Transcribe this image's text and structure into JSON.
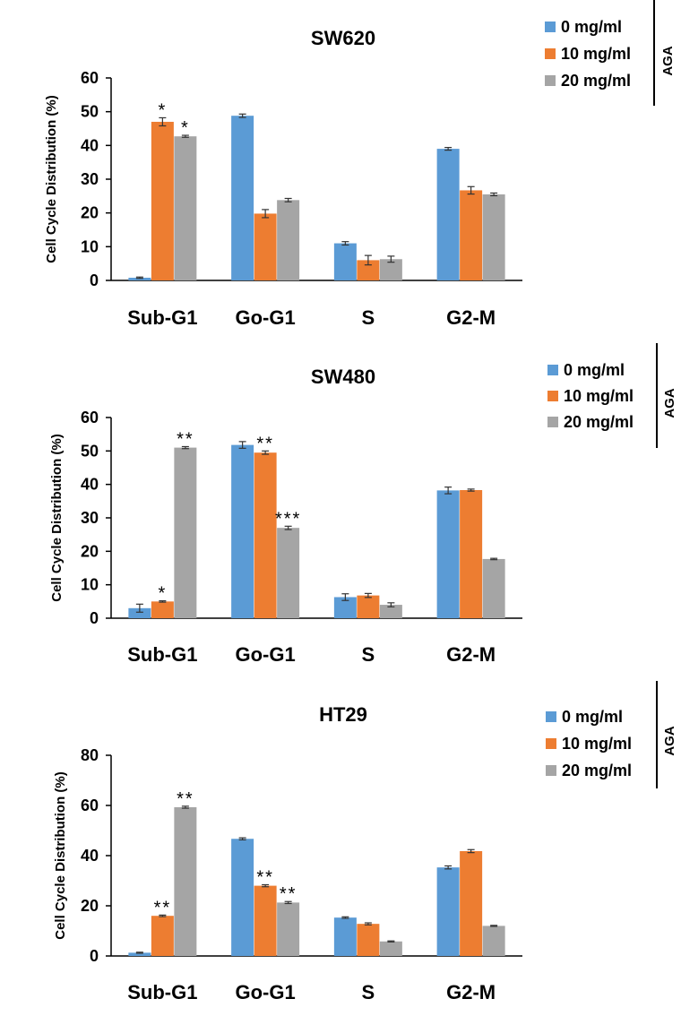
{
  "chart_data": [
    {
      "type": "bar",
      "title": "SW620",
      "ylabel": "Cell Cycle Distribution (%)",
      "xlabel": "",
      "ylim": [
        0,
        60
      ],
      "yticks": [
        0,
        10,
        20,
        30,
        40,
        50,
        60
      ],
      "categories": [
        "Sub-G1",
        "Go-G1",
        "S",
        "G2-M"
      ],
      "series": [
        {
          "name": "0 mg/ml",
          "values": [
            0.8,
            48.8,
            11.0,
            39.0
          ],
          "errors": [
            0.2,
            0.5,
            0.5,
            0.4
          ],
          "sig": [
            "",
            "",
            "",
            ""
          ]
        },
        {
          "name": "10 mg/ml",
          "values": [
            47.0,
            19.8,
            6.0,
            26.7
          ],
          "errors": [
            1.2,
            1.2,
            1.4,
            1.1
          ],
          "sig": [
            "*",
            "",
            "",
            ""
          ]
        },
        {
          "name": "20 mg/ml",
          "values": [
            42.7,
            23.8,
            6.3,
            25.5
          ],
          "errors": [
            0.3,
            0.5,
            0.9,
            0.4
          ],
          "sig": [
            "*",
            "",
            "",
            ""
          ]
        }
      ],
      "legend_group_label": "AGA"
    },
    {
      "type": "bar",
      "title": "SW480",
      "ylabel": "Cell Cycle Distribution (%)",
      "xlabel": "",
      "ylim": [
        0,
        60
      ],
      "yticks": [
        0,
        10,
        20,
        30,
        40,
        50,
        60
      ],
      "categories": [
        "Sub-G1",
        "Go-G1",
        "S",
        "G2-M"
      ],
      "series": [
        {
          "name": "0 mg/ml",
          "values": [
            3.0,
            51.8,
            6.3,
            38.2
          ],
          "errors": [
            1.2,
            1.0,
            1.0,
            1.0
          ],
          "sig": [
            "",
            "",
            "",
            ""
          ]
        },
        {
          "name": "10 mg/ml",
          "values": [
            5.0,
            49.5,
            6.8,
            38.3
          ],
          "errors": [
            0.2,
            0.5,
            0.6,
            0.3
          ],
          "sig": [
            "*",
            "**",
            "",
            ""
          ]
        },
        {
          "name": "20 mg/ml",
          "values": [
            51.0,
            27.0,
            4.0,
            17.7
          ],
          "errors": [
            0.3,
            0.5,
            0.6,
            0.2
          ],
          "sig": [
            "**",
            "***",
            "",
            ""
          ]
        }
      ],
      "legend_group_label": "AGA"
    },
    {
      "type": "bar",
      "title": "HT29",
      "ylabel": "Cell Cycle Distribution (%)",
      "xlabel": "",
      "ylim": [
        0,
        80
      ],
      "yticks": [
        0,
        20,
        40,
        60,
        80
      ],
      "categories": [
        "Sub-G1",
        "Go-G1",
        "S",
        "G2-M"
      ],
      "series": [
        {
          "name": "0 mg/ml",
          "values": [
            1.3,
            46.7,
            15.3,
            35.3
          ],
          "errors": [
            0.2,
            0.4,
            0.3,
            0.6
          ],
          "sig": [
            "",
            "",
            "",
            ""
          ]
        },
        {
          "name": "10 mg/ml",
          "values": [
            16.0,
            28.0,
            12.8,
            41.8
          ],
          "errors": [
            0.3,
            0.4,
            0.4,
            0.6
          ],
          "sig": [
            "**",
            "**",
            "",
            ""
          ]
        },
        {
          "name": "20 mg/ml",
          "values": [
            59.3,
            21.3,
            5.8,
            12.0
          ],
          "errors": [
            0.4,
            0.4,
            0.2,
            0.2
          ],
          "sig": [
            "**",
            "**",
            "",
            ""
          ]
        }
      ],
      "legend_group_label": "AGA"
    }
  ],
  "colors": [
    "#5b9bd5",
    "#ed7d31",
    "#a5a5a5"
  ]
}
